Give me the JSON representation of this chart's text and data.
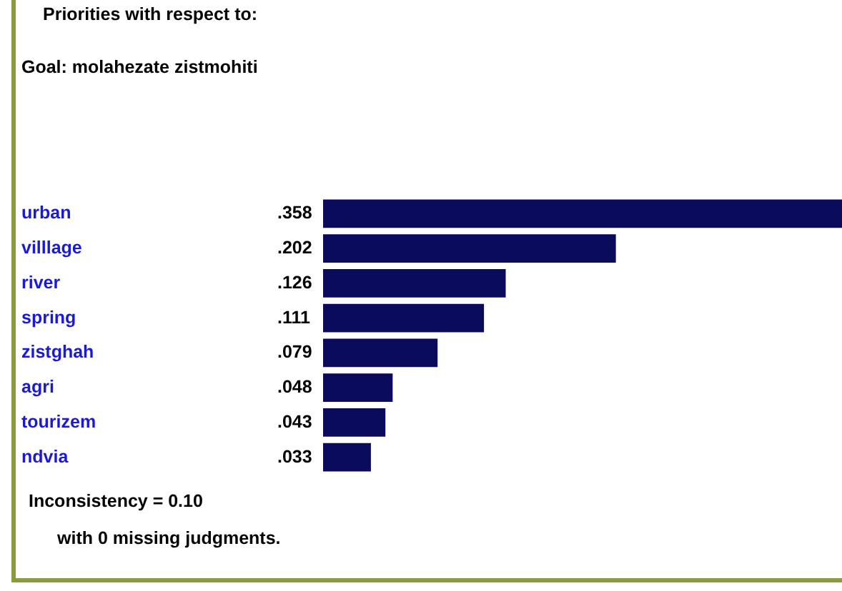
{
  "chart_data": {
    "type": "bar",
    "orientation": "horizontal",
    "title": "Priorities with respect to:",
    "subtitle": "Goal: molahezate zistmohiti",
    "categories": [
      "urban",
      "villlage",
      "river",
      "spring",
      "zistghah",
      "agri",
      "tourizem",
      "ndvia"
    ],
    "values": [
      0.358,
      0.202,
      0.126,
      0.111,
      0.079,
      0.048,
      0.043,
      0.033
    ],
    "value_labels": [
      ".358",
      ".202",
      ".126",
      ".111",
      ".079",
      ".048",
      ".043",
      ".033"
    ],
    "color": "#0b0b5e",
    "legend": false,
    "tick_labels": "y",
    "annotations": [
      "Inconsistency = 0.10",
      "with 0  missing judgments."
    ]
  }
}
